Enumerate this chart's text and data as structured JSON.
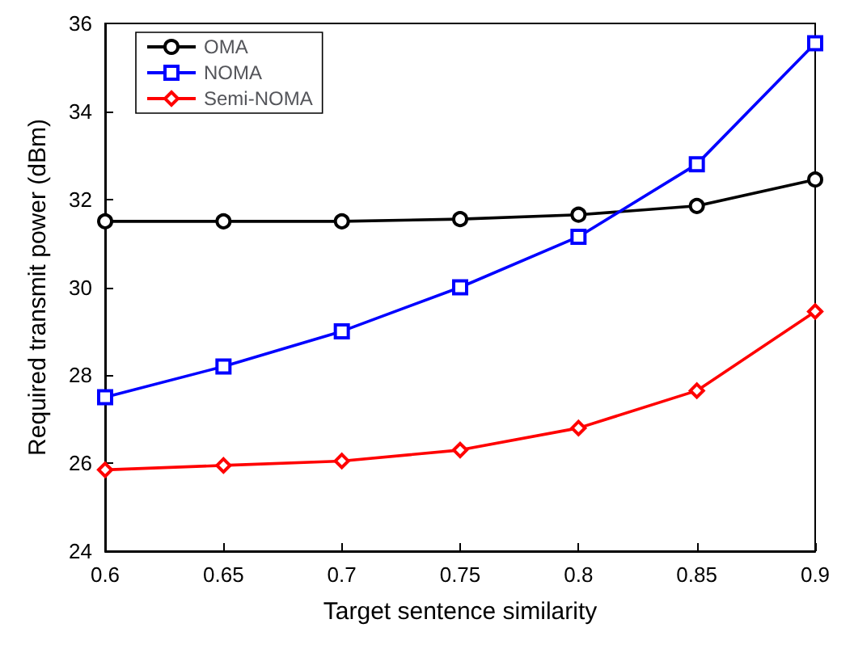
{
  "chart_data": {
    "type": "line",
    "xlabel": "Target sentence similarity",
    "ylabel": "Required transmit power (dBm)",
    "x": [
      0.6,
      0.65,
      0.7,
      0.75,
      0.8,
      0.85,
      0.9
    ],
    "series": [
      {
        "name": "OMA",
        "color": "#000000",
        "marker": "circle",
        "values": [
          31.5,
          31.5,
          31.5,
          31.55,
          31.65,
          31.85,
          32.45
        ]
      },
      {
        "name": "NOMA",
        "color": "#0000ff",
        "marker": "square",
        "values": [
          27.5,
          28.2,
          29.0,
          30.0,
          31.15,
          32.8,
          35.55
        ]
      },
      {
        "name": "Semi-NOMA",
        "color": "#ff0000",
        "marker": "diamond",
        "values": [
          25.85,
          25.95,
          26.05,
          26.3,
          26.8,
          27.65,
          29.45
        ]
      }
    ],
    "xlim": [
      0.6,
      0.9
    ],
    "xticks": [
      0.6,
      0.65,
      0.7,
      0.75,
      0.8,
      0.85,
      0.9
    ],
    "ylim": [
      24,
      36
    ],
    "yticks": [
      24,
      26,
      28,
      30,
      32,
      34,
      36
    ],
    "grid": false,
    "legend": "top left",
    "line_style": "solid"
  }
}
